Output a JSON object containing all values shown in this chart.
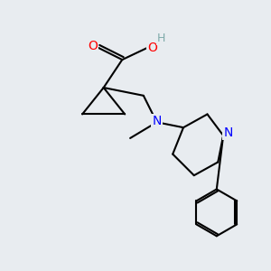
{
  "background_color": "#e8ecf0",
  "bond_color": "#000000",
  "atom_colors": {
    "O": "#ff0000",
    "N": "#0000ff",
    "H": "#7faaaa",
    "C": "#000000"
  },
  "figsize": [
    3.0,
    3.0
  ],
  "dpi": 100
}
